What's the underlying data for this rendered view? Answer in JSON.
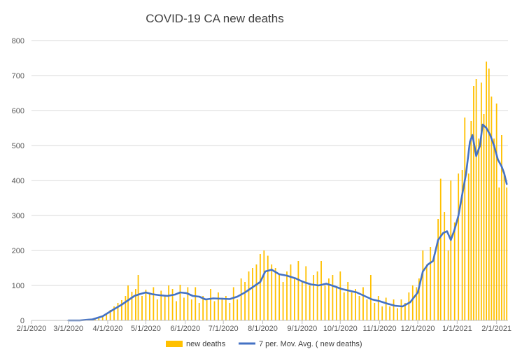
{
  "chart_data": {
    "type": "bar",
    "title": "COVID-19 CA new deaths",
    "xlabel": "",
    "ylabel": "",
    "ylim": [
      0,
      800
    ],
    "yticks": [
      0,
      100,
      200,
      300,
      400,
      500,
      600,
      700,
      800
    ],
    "x_range": [
      "2020-02-01",
      "2021-02-10"
    ],
    "xtick_labels": [
      {
        "date": "2020-02-01",
        "label": "2/1/2020"
      },
      {
        "date": "2020-03-01",
        "label": "3/1/2020"
      },
      {
        "date": "2020-04-01",
        "label": "4/1/2020"
      },
      {
        "date": "2020-05-01",
        "label": "5/1/2020"
      },
      {
        "date": "2020-06-01",
        "label": "6/1/2020"
      },
      {
        "date": "2020-07-01",
        "label": "7/1/2020"
      },
      {
        "date": "2020-08-01",
        "label": "8/1/2020"
      },
      {
        "date": "2020-09-01",
        "label": "9/1/2020"
      },
      {
        "date": "2020-10-01",
        "label": "10/1/2020"
      },
      {
        "date": "2020-11-01",
        "label": "11/1/2020"
      },
      {
        "date": "2020-12-01",
        "label": "12/1/2020"
      },
      {
        "date": "2021-01-01",
        "label": "1/1/2021"
      },
      {
        "date": "2021-02-01",
        "label": "2/1/2021"
      }
    ],
    "grid": {
      "horizontal": true,
      "vertical": false
    },
    "legend_position": "bottom",
    "series": [
      {
        "name": "new deaths",
        "kind": "bar",
        "color": "#FFC000",
        "points": [
          [
            "2020-03-04",
            1
          ],
          [
            "2020-03-10",
            0
          ],
          [
            "2020-03-14",
            1
          ],
          [
            "2020-03-18",
            3
          ],
          [
            "2020-03-22",
            6
          ],
          [
            "2020-03-25",
            10
          ],
          [
            "2020-03-28",
            14
          ],
          [
            "2020-03-31",
            20
          ],
          [
            "2020-04-03",
            30
          ],
          [
            "2020-04-06",
            40
          ],
          [
            "2020-04-09",
            50
          ],
          [
            "2020-04-12",
            58
          ],
          [
            "2020-04-15",
            70
          ],
          [
            "2020-04-17",
            100
          ],
          [
            "2020-04-20",
            82
          ],
          [
            "2020-04-23",
            90
          ],
          [
            "2020-04-25",
            130
          ],
          [
            "2020-04-28",
            70
          ],
          [
            "2020-05-01",
            88
          ],
          [
            "2020-05-04",
            75
          ],
          [
            "2020-05-07",
            95
          ],
          [
            "2020-05-10",
            60
          ],
          [
            "2020-05-13",
            85
          ],
          [
            "2020-05-16",
            70
          ],
          [
            "2020-05-19",
            100
          ],
          [
            "2020-05-22",
            90
          ],
          [
            "2020-05-25",
            55
          ],
          [
            "2020-05-28",
            102
          ],
          [
            "2020-05-31",
            65
          ],
          [
            "2020-06-03",
            95
          ],
          [
            "2020-06-06",
            60
          ],
          [
            "2020-06-09",
            95
          ],
          [
            "2020-06-12",
            50
          ],
          [
            "2020-06-15",
            70
          ],
          [
            "2020-06-18",
            60
          ],
          [
            "2020-06-21",
            90
          ],
          [
            "2020-06-24",
            55
          ],
          [
            "2020-06-27",
            80
          ],
          [
            "2020-06-30",
            65
          ],
          [
            "2020-07-03",
            70
          ],
          [
            "2020-07-06",
            50
          ],
          [
            "2020-07-09",
            95
          ],
          [
            "2020-07-12",
            60
          ],
          [
            "2020-07-15",
            120
          ],
          [
            "2020-07-18",
            110
          ],
          [
            "2020-07-21",
            140
          ],
          [
            "2020-07-24",
            150
          ],
          [
            "2020-07-27",
            160
          ],
          [
            "2020-07-30",
            190
          ],
          [
            "2020-08-02",
            200
          ],
          [
            "2020-08-05",
            185
          ],
          [
            "2020-08-08",
            160
          ],
          [
            "2020-08-11",
            150
          ],
          [
            "2020-08-14",
            130
          ],
          [
            "2020-08-17",
            110
          ],
          [
            "2020-08-20",
            140
          ],
          [
            "2020-08-23",
            160
          ],
          [
            "2020-08-26",
            120
          ],
          [
            "2020-08-29",
            170
          ],
          [
            "2020-09-01",
            110
          ],
          [
            "2020-09-04",
            155
          ],
          [
            "2020-09-07",
            100
          ],
          [
            "2020-09-10",
            130
          ],
          [
            "2020-09-13",
            140
          ],
          [
            "2020-09-16",
            170
          ],
          [
            "2020-09-19",
            100
          ],
          [
            "2020-09-22",
            120
          ],
          [
            "2020-09-25",
            130
          ],
          [
            "2020-09-28",
            95
          ],
          [
            "2020-10-01",
            140
          ],
          [
            "2020-10-04",
            80
          ],
          [
            "2020-10-07",
            110
          ],
          [
            "2020-10-10",
            80
          ],
          [
            "2020-10-13",
            90
          ],
          [
            "2020-10-16",
            70
          ],
          [
            "2020-10-19",
            95
          ],
          [
            "2020-10-22",
            60
          ],
          [
            "2020-10-25",
            130
          ],
          [
            "2020-10-28",
            50
          ],
          [
            "2020-10-31",
            70
          ],
          [
            "2020-11-03",
            40
          ],
          [
            "2020-11-06",
            65
          ],
          [
            "2020-11-09",
            40
          ],
          [
            "2020-11-12",
            60
          ],
          [
            "2020-11-15",
            35
          ],
          [
            "2020-11-18",
            60
          ],
          [
            "2020-11-21",
            50
          ],
          [
            "2020-11-24",
            80
          ],
          [
            "2020-11-27",
            100
          ],
          [
            "2020-11-30",
            95
          ],
          [
            "2020-12-02",
            120
          ],
          [
            "2020-12-05",
            200
          ],
          [
            "2020-12-08",
            160
          ],
          [
            "2020-12-11",
            210
          ],
          [
            "2020-12-14",
            190
          ],
          [
            "2020-12-17",
            290
          ],
          [
            "2020-12-19",
            405
          ],
          [
            "2020-12-22",
            310
          ],
          [
            "2020-12-25",
            200
          ],
          [
            "2020-12-27",
            400
          ],
          [
            "2020-12-30",
            280
          ],
          [
            "2021-01-02",
            420
          ],
          [
            "2021-01-05",
            430
          ],
          [
            "2021-01-07",
            580
          ],
          [
            "2021-01-10",
            420
          ],
          [
            "2021-01-12",
            570
          ],
          [
            "2021-01-14",
            670
          ],
          [
            "2021-01-16",
            690
          ],
          [
            "2021-01-18",
            520
          ],
          [
            "2021-01-20",
            680
          ],
          [
            "2021-01-22",
            590
          ],
          [
            "2021-01-24",
            740
          ],
          [
            "2021-01-26",
            720
          ],
          [
            "2021-01-28",
            640
          ],
          [
            "2021-01-30",
            520
          ],
          [
            "2021-02-01",
            620
          ],
          [
            "2021-02-03",
            380
          ],
          [
            "2021-02-05",
            530
          ],
          [
            "2021-02-07",
            420
          ],
          [
            "2021-02-09",
            380
          ]
        ]
      },
      {
        "name": "7 per. Mov. Avg. ( new deaths)",
        "kind": "line",
        "color": "#4472C4",
        "points": [
          [
            "2020-03-01",
            0
          ],
          [
            "2020-03-10",
            0
          ],
          [
            "2020-03-20",
            3
          ],
          [
            "2020-03-28",
            12
          ],
          [
            "2020-04-05",
            30
          ],
          [
            "2020-04-12",
            45
          ],
          [
            "2020-04-18",
            60
          ],
          [
            "2020-04-22",
            70
          ],
          [
            "2020-04-26",
            75
          ],
          [
            "2020-05-01",
            80
          ],
          [
            "2020-05-06",
            75
          ],
          [
            "2020-05-12",
            72
          ],
          [
            "2020-05-18",
            70
          ],
          [
            "2020-05-24",
            74
          ],
          [
            "2020-05-28",
            80
          ],
          [
            "2020-06-02",
            78
          ],
          [
            "2020-06-07",
            70
          ],
          [
            "2020-06-12",
            68
          ],
          [
            "2020-06-17",
            60
          ],
          [
            "2020-06-23",
            63
          ],
          [
            "2020-06-30",
            62
          ],
          [
            "2020-07-06",
            61
          ],
          [
            "2020-07-12",
            68
          ],
          [
            "2020-07-18",
            80
          ],
          [
            "2020-07-24",
            95
          ],
          [
            "2020-07-30",
            110
          ],
          [
            "2020-08-03",
            140
          ],
          [
            "2020-08-08",
            145
          ],
          [
            "2020-08-14",
            132
          ],
          [
            "2020-08-20",
            128
          ],
          [
            "2020-08-27",
            120
          ],
          [
            "2020-09-02",
            110
          ],
          [
            "2020-09-08",
            103
          ],
          [
            "2020-09-14",
            100
          ],
          [
            "2020-09-20",
            105
          ],
          [
            "2020-09-26",
            98
          ],
          [
            "2020-10-02",
            90
          ],
          [
            "2020-10-08",
            85
          ],
          [
            "2020-10-14",
            80
          ],
          [
            "2020-10-20",
            70
          ],
          [
            "2020-10-26",
            60
          ],
          [
            "2020-11-01",
            55
          ],
          [
            "2020-11-07",
            48
          ],
          [
            "2020-11-13",
            42
          ],
          [
            "2020-11-19",
            40
          ],
          [
            "2020-11-25",
            52
          ],
          [
            "2020-12-01",
            80
          ],
          [
            "2020-12-05",
            140
          ],
          [
            "2020-12-09",
            160
          ],
          [
            "2020-12-13",
            170
          ],
          [
            "2020-12-17",
            230
          ],
          [
            "2020-12-21",
            250
          ],
          [
            "2020-12-24",
            255
          ],
          [
            "2020-12-27",
            230
          ],
          [
            "2020-12-30",
            260
          ],
          [
            "2021-01-02",
            300
          ],
          [
            "2021-01-05",
            360
          ],
          [
            "2021-01-08",
            420
          ],
          [
            "2021-01-11",
            510
          ],
          [
            "2021-01-13",
            530
          ],
          [
            "2021-01-16",
            470
          ],
          [
            "2021-01-19",
            500
          ],
          [
            "2021-01-21",
            560
          ],
          [
            "2021-01-24",
            550
          ],
          [
            "2021-01-27",
            530
          ],
          [
            "2021-01-30",
            500
          ],
          [
            "2021-02-02",
            460
          ],
          [
            "2021-02-05",
            440
          ],
          [
            "2021-02-07",
            420
          ],
          [
            "2021-02-09",
            390
          ]
        ]
      }
    ]
  }
}
